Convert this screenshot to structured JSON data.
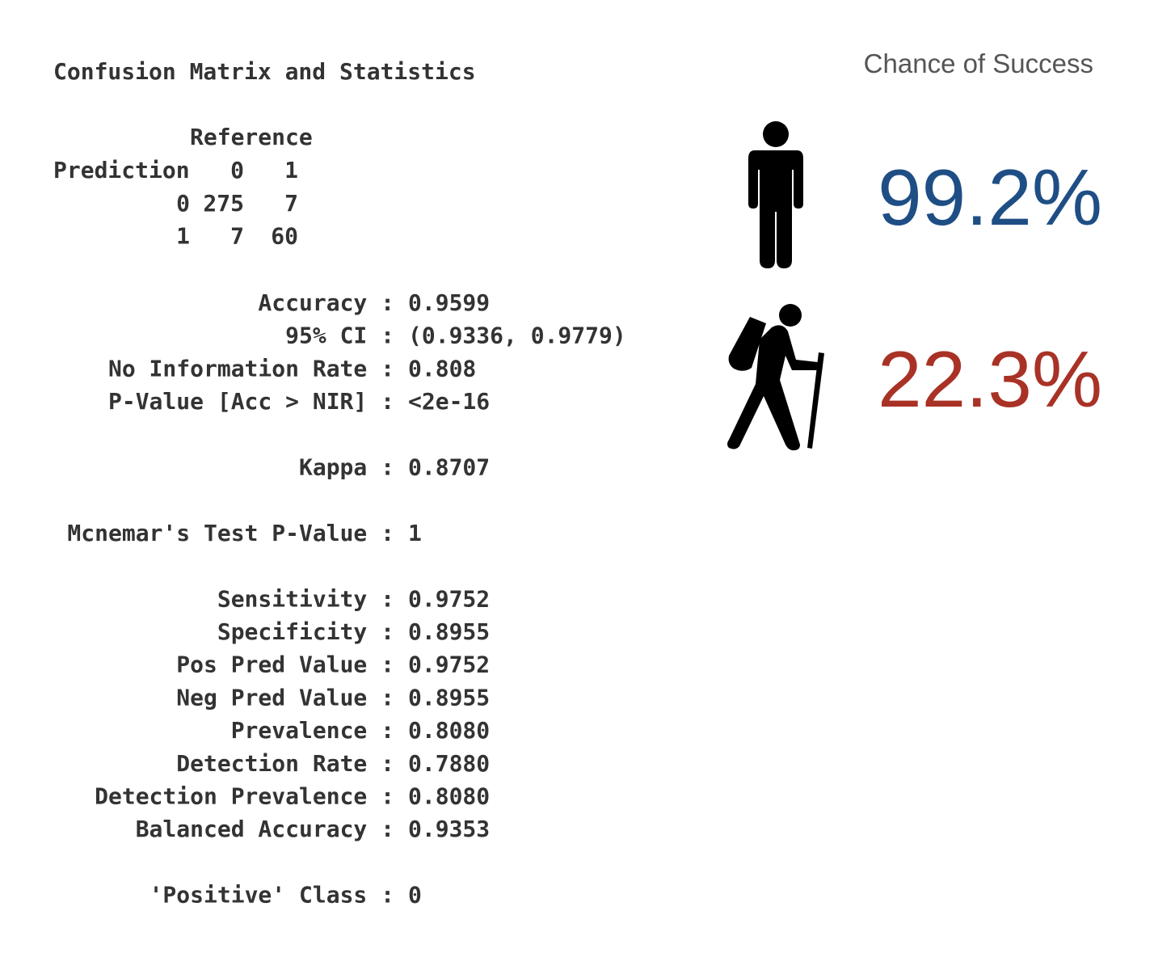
{
  "title": "Confusion Matrix and Statistics",
  "matrix": {
    "reference": "Reference",
    "prediction": "Prediction",
    "columns": [
      "0",
      "1"
    ],
    "rows": [
      {
        "label": "0",
        "cells": [
          "275",
          "7"
        ]
      },
      {
        "label": "1",
        "cells": [
          "7",
          "60"
        ]
      }
    ]
  },
  "stats": [
    [
      {
        "label": "Accuracy :",
        "value": "0.9599"
      },
      {
        "label": "95% CI :",
        "value": "(0.9336, 0.9779)"
      },
      {
        "label": "No Information Rate :",
        "value": "0.808"
      },
      {
        "label": "P-Value [Acc > NIR] :",
        "value": "<2e-16"
      }
    ],
    [
      {
        "label": "Kappa :",
        "value": "0.8707"
      }
    ],
    [
      {
        "label": "Mcnemar's Test P-Value :",
        "value": "1"
      }
    ],
    [
      {
        "label": "Sensitivity :",
        "value": "0.9752"
      },
      {
        "label": "Specificity :",
        "value": "0.8955"
      },
      {
        "label": "Pos Pred Value :",
        "value": "0.9752"
      },
      {
        "label": "Neg Pred Value :",
        "value": "0.8955"
      },
      {
        "label": "Prevalence :",
        "value": "0.8080"
      },
      {
        "label": "Detection Rate :",
        "value": "0.7880"
      },
      {
        "label": "Detection Prevalence :",
        "value": "0.8080"
      },
      {
        "label": "Balanced Accuracy :",
        "value": "0.9353"
      }
    ],
    [
      {
        "label": "'Positive' Class :",
        "value": "0"
      }
    ]
  ],
  "panel": {
    "title": "Chance of Success",
    "items": [
      {
        "value": "99.2%",
        "color": "#1f4e85"
      },
      {
        "value": "22.3%",
        "color": "#a93226"
      }
    ]
  }
}
